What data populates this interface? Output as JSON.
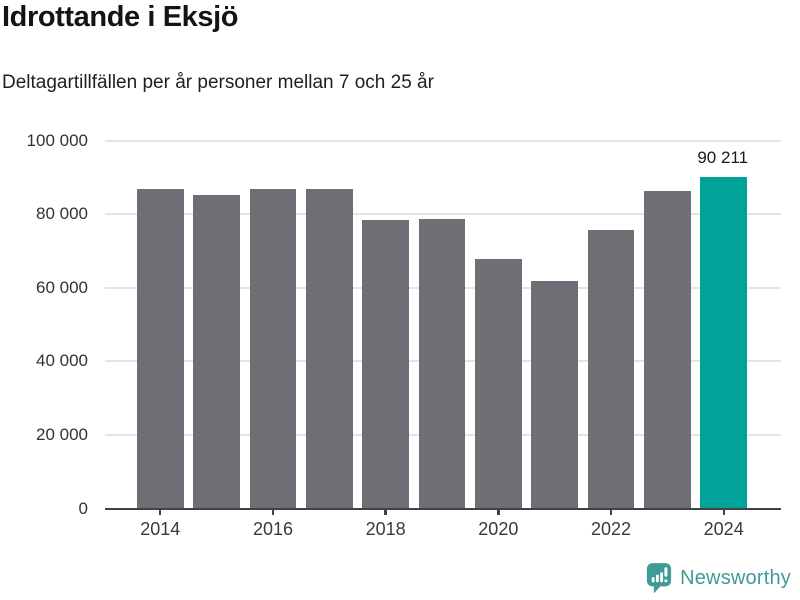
{
  "chart_data": {
    "type": "bar",
    "title": "Idrottande i Eksjö",
    "subtitle": "Deltagartillfällen per år personer mellan 7 och 25 år",
    "categories": [
      "2014",
      "2015",
      "2016",
      "2017",
      "2018",
      "2019",
      "2020",
      "2021",
      "2022",
      "2023",
      "2024"
    ],
    "values": [
      86900,
      85200,
      86800,
      86700,
      78500,
      78800,
      67900,
      61900,
      75700,
      86300,
      90211
    ],
    "highlight_index": 10,
    "annotation": {
      "bar_index": 10,
      "text": "90 211"
    },
    "ylim": [
      0,
      100000
    ],
    "grid": true,
    "legend": false,
    "y_ticks": [
      {
        "value": 0,
        "label": "0"
      },
      {
        "value": 20000,
        "label": "20 000"
      },
      {
        "value": 40000,
        "label": "40 000"
      },
      {
        "value": 60000,
        "label": "60 000"
      },
      {
        "value": 80000,
        "label": "80 000"
      },
      {
        "value": 100000,
        "label": "100 000"
      }
    ],
    "x_tick_labels": [
      "2014",
      "2016",
      "2018",
      "2020",
      "2022",
      "2024"
    ],
    "colors": {
      "bar": "#6f6e74",
      "highlight": "#00a398",
      "grid": "#e4e4e6",
      "axis": "#414146",
      "tick_text": "#3a3a3a",
      "title_text": "#141414",
      "annotation_text": "#1a1a1a"
    }
  },
  "footer": {
    "brand": "Newsworthy",
    "brand_color": "#3f9b96",
    "logo_icon": "newsworthy-speech-bubble-bar-chart-icon"
  }
}
